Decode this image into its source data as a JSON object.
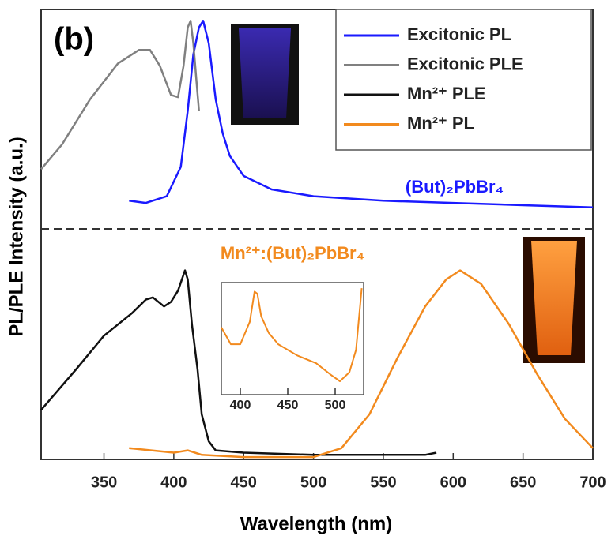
{
  "chart_data": [
    {
      "type": "line",
      "panel_label": "(b)",
      "xlabel": "Wavelength (nm)",
      "ylabel": "PL/PLE Intensity (a.u.)",
      "xlim": [
        305,
        700
      ],
      "xticks": [
        350,
        400,
        450,
        500,
        550,
        600,
        650,
        700
      ],
      "ylim": [
        0,
        2
      ],
      "annotations": [
        "(But)₂PbBr₄",
        "Mn²⁺:(But)₂PbBr₄"
      ],
      "series": [
        {
          "name": "Excitonic PL",
          "color": "#1a1aff",
          "x": [
            368,
            380,
            395,
            405,
            410,
            414,
            418,
            421,
            425,
            430,
            435,
            440,
            450,
            470,
            500,
            550,
            600,
            650,
            700
          ],
          "values": [
            1.15,
            1.14,
            1.17,
            1.3,
            1.55,
            1.8,
            1.92,
            1.95,
            1.85,
            1.6,
            1.45,
            1.35,
            1.26,
            1.2,
            1.17,
            1.15,
            1.14,
            1.13,
            1.12
          ]
        },
        {
          "name": "Excitonic PLE",
          "color": "#808080",
          "x": [
            305,
            320,
            340,
            360,
            375,
            383,
            390,
            398,
            403,
            407,
            410,
            412,
            414,
            416,
            418
          ],
          "values": [
            1.29,
            1.4,
            1.6,
            1.76,
            1.82,
            1.82,
            1.75,
            1.62,
            1.61,
            1.75,
            1.92,
            1.95,
            1.85,
            1.7,
            1.55
          ]
        },
        {
          "name": "Mn²⁺ PLE",
          "color": "#111111",
          "x": [
            305,
            330,
            350,
            370,
            380,
            385,
            393,
            398,
            403,
            408,
            410,
            413,
            417,
            420,
            425,
            430,
            450,
            500,
            550,
            580,
            588
          ],
          "values": [
            0.22,
            0.4,
            0.55,
            0.65,
            0.71,
            0.72,
            0.68,
            0.7,
            0.75,
            0.84,
            0.8,
            0.6,
            0.4,
            0.2,
            0.08,
            0.04,
            0.03,
            0.02,
            0.02,
            0.02,
            0.03
          ]
        },
        {
          "name": "Mn²⁺ PL",
          "color": "#f28a1e",
          "x": [
            368,
            400,
            410,
            420,
            450,
            500,
            520,
            540,
            560,
            580,
            595,
            605,
            620,
            640,
            660,
            680,
            700
          ],
          "values": [
            0.05,
            0.03,
            0.04,
            0.02,
            0.01,
            0.01,
            0.05,
            0.2,
            0.45,
            0.68,
            0.8,
            0.84,
            0.78,
            0.6,
            0.38,
            0.18,
            0.05
          ]
        }
      ]
    },
    {
      "type": "line",
      "xlim": [
        380,
        530
      ],
      "xticks": [
        400,
        450,
        500
      ],
      "ylim": [
        0,
        1
      ],
      "series": [
        {
          "color": "#f28a1e",
          "x": [
            380,
            390,
            400,
            410,
            415,
            418,
            422,
            430,
            440,
            460,
            480,
            495,
            505,
            515,
            522,
            528
          ],
          "values": [
            0.6,
            0.45,
            0.45,
            0.65,
            0.92,
            0.9,
            0.7,
            0.55,
            0.45,
            0.35,
            0.28,
            0.18,
            0.12,
            0.2,
            0.4,
            0.95
          ]
        }
      ]
    }
  ]
}
